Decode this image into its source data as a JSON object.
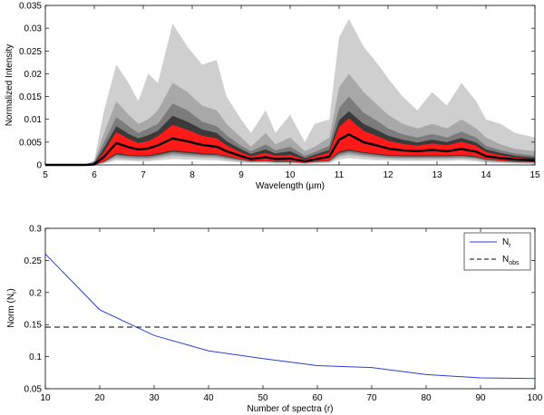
{
  "chart_data": [
    {
      "type": "area",
      "xlabel": "Wavelength (µm)",
      "ylabel": "Normalized Intensity",
      "xlim": [
        5,
        15
      ],
      "ylim": [
        0,
        0.035
      ],
      "xticks": [
        5,
        6,
        7,
        8,
        9,
        10,
        11,
        12,
        13,
        14,
        15
      ],
      "yticks": [
        "0",
        "0.005",
        "0.01",
        "0.015",
        "0.02",
        "0.025",
        "0.03",
        "0.035"
      ],
      "grid": false,
      "colors": {
        "outer": "#cfcfcf",
        "mid_light": "#a8a8a8",
        "mid": "#7c7c7c",
        "dark": "#3a3a3a",
        "core": "#ff1a1a",
        "median": "#000000"
      },
      "x": [
        5.0,
        5.8,
        6.0,
        6.2,
        6.45,
        6.7,
        6.9,
        7.1,
        7.3,
        7.6,
        7.9,
        8.2,
        8.5,
        8.7,
        9.0,
        9.2,
        9.5,
        9.7,
        10.0,
        10.3,
        10.5,
        10.8,
        11.0,
        11.2,
        11.5,
        11.8,
        12.0,
        12.3,
        12.6,
        12.9,
        13.2,
        13.5,
        13.8,
        14.0,
        14.3,
        14.6,
        15.0
      ],
      "bands": [
        {
          "name": "outer",
          "upper": [
            0,
            0,
            0.001,
            0.012,
            0.022,
            0.018,
            0.014,
            0.02,
            0.018,
            0.031,
            0.026,
            0.022,
            0.023,
            0.015,
            0.01,
            0.007,
            0.012,
            0.007,
            0.011,
            0.005,
            0.009,
            0.01,
            0.028,
            0.032,
            0.026,
            0.022,
            0.019,
            0.015,
            0.012,
            0.016,
            0.013,
            0.018,
            0.014,
            0.01,
            0.009,
            0.007,
            0.006
          ],
          "lower": [
            0,
            0,
            0,
            0.0003,
            0.001,
            0.0009,
            0.0008,
            0.0008,
            0.001,
            0.0013,
            0.0012,
            0.0011,
            0.001,
            0.0008,
            0.0005,
            0.0004,
            0.0004,
            0.0003,
            0.0003,
            0.0002,
            0.0003,
            0.0004,
            0.0012,
            0.0015,
            0.0012,
            0.001,
            0.001,
            0.0009,
            0.0009,
            0.0009,
            0.0009,
            0.001,
            0.0008,
            0.0005,
            0.0004,
            0.0003,
            0.0002
          ]
        },
        {
          "name": "mid_light",
          "upper": [
            0,
            0,
            0.0008,
            0.007,
            0.014,
            0.011,
            0.009,
            0.01,
            0.012,
            0.018,
            0.016,
            0.013,
            0.012,
            0.009,
            0.006,
            0.004,
            0.007,
            0.0045,
            0.006,
            0.003,
            0.004,
            0.006,
            0.017,
            0.02,
            0.016,
            0.013,
            0.011,
            0.009,
            0.008,
            0.009,
            0.008,
            0.01,
            0.008,
            0.006,
            0.0045,
            0.0035,
            0.003
          ],
          "lower": [
            0,
            0,
            0,
            0.0005,
            0.0015,
            0.0013,
            0.0012,
            0.0012,
            0.0015,
            0.002,
            0.0018,
            0.0016,
            0.0015,
            0.0012,
            0.0008,
            0.0006,
            0.0006,
            0.0005,
            0.0005,
            0.0003,
            0.0005,
            0.0006,
            0.0018,
            0.0022,
            0.0018,
            0.0015,
            0.0014,
            0.0013,
            0.0013,
            0.0013,
            0.0013,
            0.0014,
            0.0012,
            0.0008,
            0.0006,
            0.0005,
            0.0004
          ]
        },
        {
          "name": "mid",
          "upper": [
            0,
            0,
            0.0006,
            0.005,
            0.0105,
            0.0085,
            0.007,
            0.008,
            0.009,
            0.0135,
            0.012,
            0.0095,
            0.0085,
            0.0065,
            0.0042,
            0.003,
            0.0045,
            0.0032,
            0.004,
            0.002,
            0.0028,
            0.0042,
            0.0125,
            0.015,
            0.0115,
            0.0095,
            0.008,
            0.0067,
            0.006,
            0.0068,
            0.006,
            0.0073,
            0.006,
            0.0042,
            0.0032,
            0.0025,
            0.002
          ],
          "lower": [
            0,
            0,
            0,
            0.0006,
            0.002,
            0.0017,
            0.0016,
            0.0016,
            0.0019,
            0.0025,
            0.0022,
            0.002,
            0.0019,
            0.0015,
            0.001,
            0.0007,
            0.0008,
            0.0006,
            0.0006,
            0.0004,
            0.0006,
            0.0008,
            0.0022,
            0.0027,
            0.0022,
            0.0019,
            0.0017,
            0.0016,
            0.0016,
            0.0016,
            0.0016,
            0.0017,
            0.0015,
            0.001,
            0.0008,
            0.0006,
            0.0005
          ]
        },
        {
          "name": "dark",
          "upper": [
            0,
            0,
            0.0004,
            0.0038,
            0.0085,
            0.0068,
            0.0058,
            0.0065,
            0.0075,
            0.0108,
            0.0095,
            0.0078,
            0.007,
            0.0052,
            0.0034,
            0.0024,
            0.0034,
            0.0025,
            0.003,
            0.0015,
            0.0022,
            0.0033,
            0.0098,
            0.0118,
            0.009,
            0.0075,
            0.0064,
            0.0055,
            0.0049,
            0.0055,
            0.005,
            0.0059,
            0.0049,
            0.0034,
            0.0026,
            0.002,
            0.0016
          ],
          "lower": [
            0,
            0,
            0,
            0.0007,
            0.0023,
            0.002,
            0.0019,
            0.0019,
            0.0022,
            0.0029,
            0.0026,
            0.0023,
            0.0022,
            0.0018,
            0.0012,
            0.0008,
            0.0009,
            0.0007,
            0.0007,
            0.0005,
            0.0007,
            0.0009,
            0.0026,
            0.0031,
            0.0026,
            0.0022,
            0.002,
            0.0019,
            0.0019,
            0.0019,
            0.0019,
            0.002,
            0.0017,
            0.0012,
            0.0009,
            0.0007,
            0.0006
          ]
        },
        {
          "name": "core",
          "upper": [
            0,
            0,
            0.0003,
            0.0028,
            0.0072,
            0.0057,
            0.0048,
            0.0052,
            0.0063,
            0.0088,
            0.0077,
            0.0064,
            0.0058,
            0.0043,
            0.0027,
            0.0019,
            0.0026,
            0.002,
            0.0022,
            0.0012,
            0.0018,
            0.0027,
            0.0083,
            0.0102,
            0.0075,
            0.0062,
            0.0053,
            0.0046,
            0.0042,
            0.0047,
            0.0043,
            0.0051,
            0.0042,
            0.0028,
            0.0021,
            0.0016,
            0.0013
          ],
          "lower": [
            0,
            0,
            0,
            0.0008,
            0.0026,
            0.0022,
            0.0021,
            0.0021,
            0.0025,
            0.0032,
            0.0029,
            0.0026,
            0.0024,
            0.002,
            0.0013,
            0.0009,
            0.001,
            0.0008,
            0.0008,
            0.0005,
            0.0008,
            0.001,
            0.0029,
            0.0034,
            0.0028,
            0.0024,
            0.0022,
            0.0021,
            0.0021,
            0.0021,
            0.0021,
            0.0022,
            0.0019,
            0.0013,
            0.001,
            0.0008,
            0.0007
          ]
        }
      ],
      "median": [
        0,
        0,
        0.0001,
        0.0018,
        0.0048,
        0.0039,
        0.0034,
        0.0036,
        0.0043,
        0.0058,
        0.0052,
        0.0044,
        0.004,
        0.003,
        0.0019,
        0.0013,
        0.0017,
        0.0013,
        0.0014,
        0.0008,
        0.0012,
        0.0018,
        0.0055,
        0.0067,
        0.005,
        0.0042,
        0.0036,
        0.0032,
        0.003,
        0.0033,
        0.003,
        0.0035,
        0.0029,
        0.0019,
        0.0015,
        0.0012,
        0.001
      ]
    },
    {
      "type": "line",
      "xlabel": "Number of spectra (r)",
      "ylabel": "Norm (N_r)",
      "xlim": [
        10,
        100
      ],
      "ylim": [
        0.05,
        0.3
      ],
      "xticks": [
        10,
        20,
        30,
        40,
        50,
        60,
        70,
        80,
        90,
        100
      ],
      "yticks": [
        "0.05",
        "0.1",
        "0.15",
        "0.2",
        "0.25",
        "0.3"
      ],
      "grid": false,
      "legend_position": "top-right",
      "series": [
        {
          "name": "N_r",
          "style": "solid",
          "color": "#2b3fd6",
          "x": [
            10,
            20,
            30,
            40,
            50,
            60,
            70,
            80,
            90,
            100
          ],
          "values": [
            0.26,
            0.173,
            0.133,
            0.109,
            0.097,
            0.086,
            0.083,
            0.072,
            0.067,
            0.066
          ]
        },
        {
          "name": "N_obs",
          "style": "dashed",
          "color": "#000000",
          "x": [
            10,
            100
          ],
          "values": [
            0.146,
            0.146
          ]
        }
      ]
    }
  ]
}
